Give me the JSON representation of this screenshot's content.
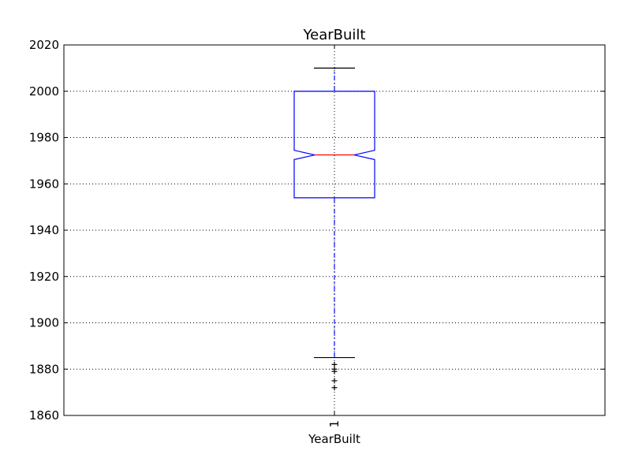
{
  "chart_data": {
    "type": "box",
    "title": "YearBuilt",
    "xlabel": "YearBuilt",
    "ylabel": "",
    "ylim": [
      1860,
      2020
    ],
    "yticks": [
      1860,
      1880,
      1900,
      1920,
      1940,
      1960,
      1980,
      2000,
      2020
    ],
    "categories": [
      "1"
    ],
    "grid": true,
    "notched": true,
    "boxes": [
      {
        "category": "1",
        "whisker_low": 1885,
        "q1": 1954,
        "median": 1972.5,
        "q3": 2000,
        "whisker_high": 2010,
        "notch_low": 1970.5,
        "notch_high": 1974.5,
        "outliers": [
          1882,
          1880,
          1879,
          1875,
          1872
        ]
      }
    ],
    "colors": {
      "box": "#0000ff",
      "median": "#ff0000",
      "whisker": "#0000ff",
      "cap": "#000000",
      "outlier": "#000000",
      "grid": "#000000"
    }
  }
}
